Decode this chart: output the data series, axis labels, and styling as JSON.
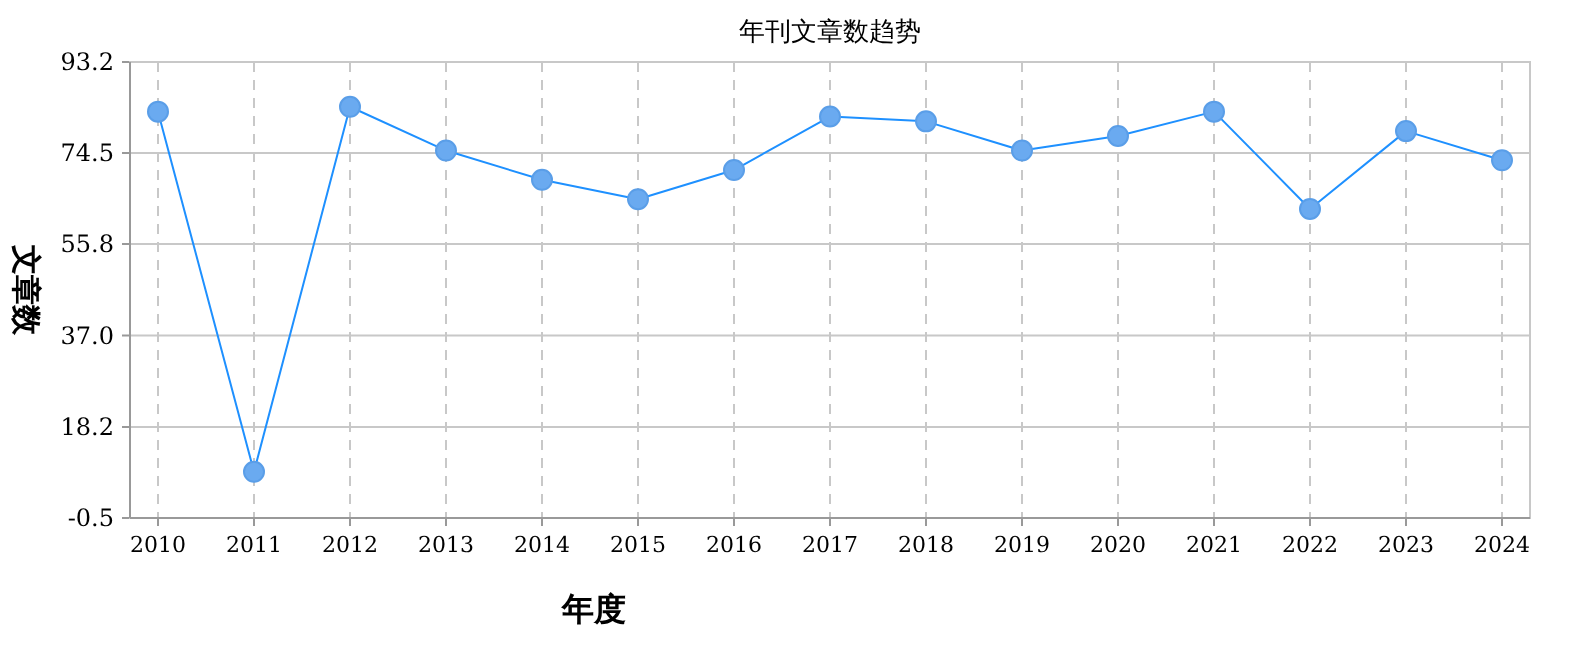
{
  "chart_data": {
    "type": "line",
    "title": "年刊文章数趋势",
    "xlabel": "年度",
    "ylabel": "文章数",
    "categories": [
      "2010",
      "2011",
      "2012",
      "2013",
      "2014",
      "2015",
      "2016",
      "2017",
      "2018",
      "2019",
      "2020",
      "2021",
      "2022",
      "2023",
      "2024"
    ],
    "series": [
      {
        "color": "#1e90ff",
        "values": [
          83,
          9,
          84,
          75,
          69,
          65,
          71,
          82,
          81,
          75,
          78,
          83,
          63,
          79,
          73
        ]
      }
    ],
    "ylim": [
      -0.5,
      93.2
    ],
    "yticks": [
      -0.5,
      18.2,
      {
        "value": 37,
        "label": "37.0"
      },
      55.8,
      74.5,
      93.2
    ],
    "grid": true,
    "marker": "circle",
    "line_style": "solid"
  }
}
